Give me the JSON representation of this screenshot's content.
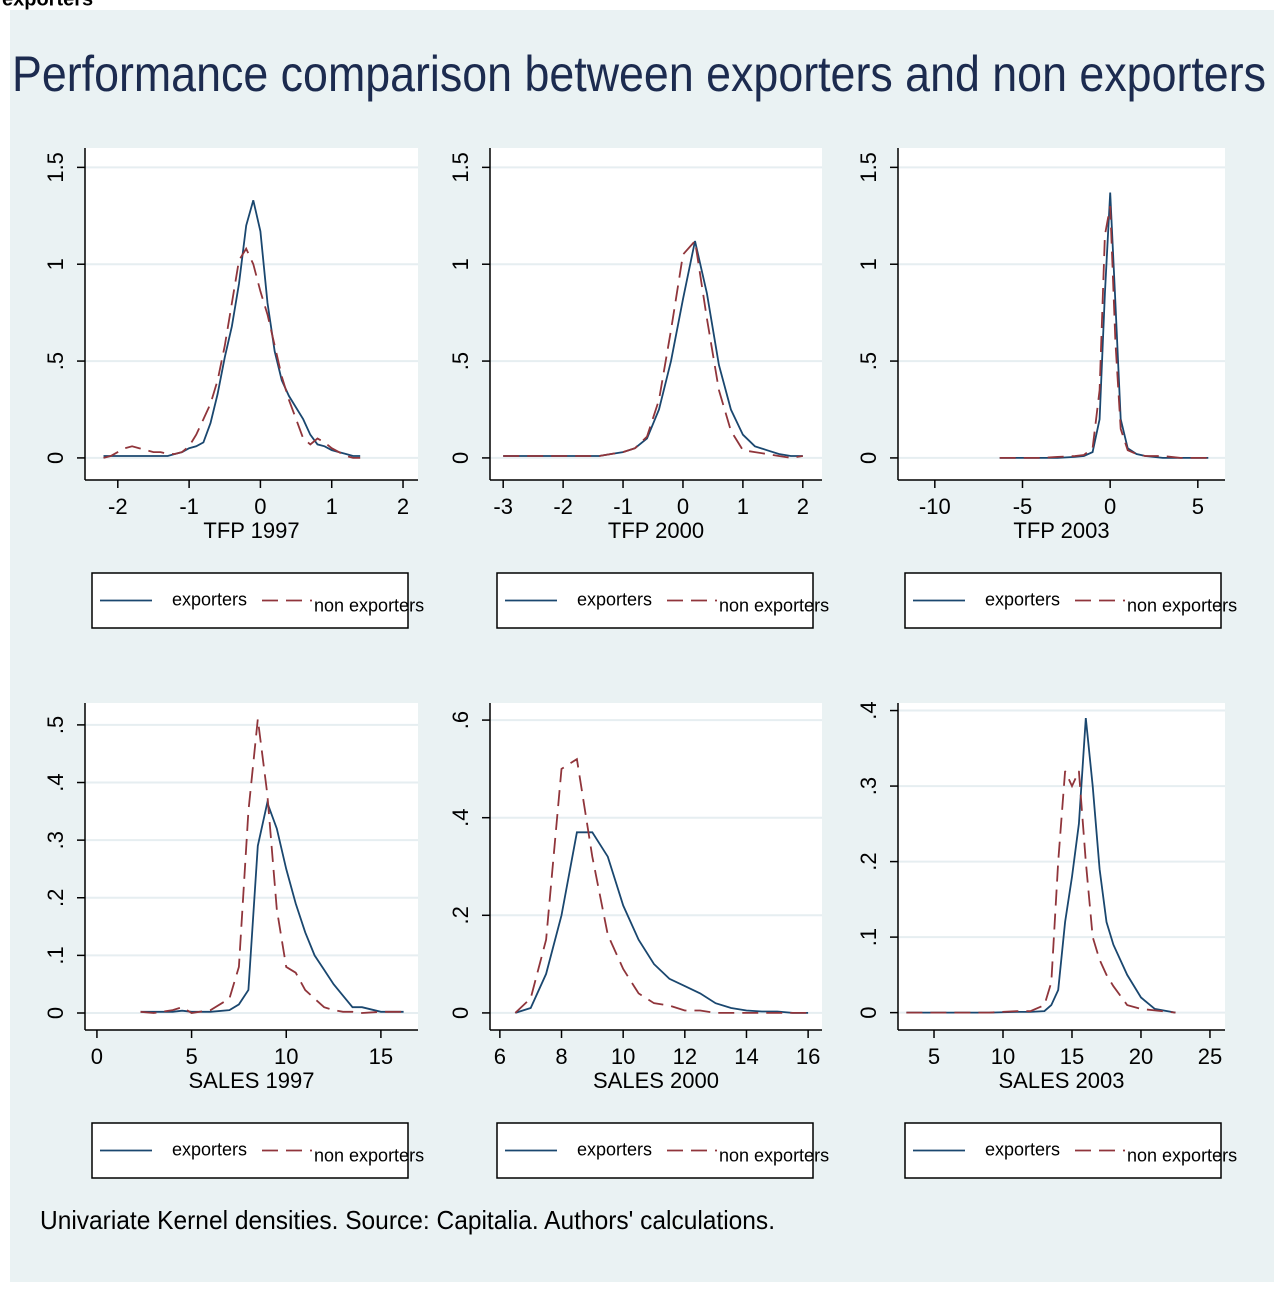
{
  "header": "exporters",
  "title": "Performance comparison between exporters and non exporters",
  "note": "Univariate Kernel densities. Source: Capitalia. Authors' calculations.",
  "chart_data": [
    {
      "type": "line",
      "x_label": "TFP 1997",
      "x": [
        -2.2,
        -2.1,
        -2.0,
        -1.9,
        -1.8,
        -1.7,
        -1.6,
        -1.5,
        -1.4,
        -1.3,
        -1.2,
        -1.1,
        -1.0,
        -0.9,
        -0.8,
        -0.7,
        -0.6,
        -0.5,
        -0.4,
        -0.3,
        -0.2,
        -0.1,
        0,
        0.1,
        0.2,
        0.3,
        0.4,
        0.5,
        0.6,
        0.7,
        0.8,
        0.9,
        1.0,
        1.1,
        1.2,
        1.3,
        1.4
      ],
      "xlim": [
        -2.46,
        2.21
      ],
      "xticks": [
        -2,
        -1,
        0,
        1,
        2
      ],
      "ylim": [
        -0.114,
        1.6
      ],
      "yticks": [
        0,
        {
          "value": 0.5,
          "label": ".5"
        },
        1,
        1.5
      ],
      "grid": true,
      "series": [
        {
          "name": "exporters",
          "color": "#1a476f",
          "dash": false,
          "values": [
            0.01,
            0.01,
            0.01,
            0.01,
            0.01,
            0.01,
            0.01,
            0.01,
            0.01,
            0.01,
            0.02,
            0.03,
            0.05,
            0.06,
            0.08,
            0.18,
            0.33,
            0.52,
            0.68,
            0.9,
            1.2,
            1.33,
            1.17,
            0.8,
            0.55,
            0.4,
            0.32,
            0.26,
            0.2,
            0.12,
            0.07,
            0.06,
            0.04,
            0.03,
            0.02,
            0.01,
            0.01
          ]
        },
        {
          "name": "non exporters",
          "color": "#90353b",
          "dash": true,
          "values": [
            0.0,
            0.01,
            0.03,
            0.05,
            0.06,
            0.05,
            0.04,
            0.03,
            0.03,
            0.02,
            0.02,
            0.03,
            0.06,
            0.12,
            0.2,
            0.28,
            0.4,
            0.58,
            0.8,
            1.02,
            1.08,
            1.0,
            0.86,
            0.74,
            0.58,
            0.42,
            0.3,
            0.2,
            0.1,
            0.07,
            0.1,
            0.08,
            0.05,
            0.03,
            0.01,
            0.0,
            0.0
          ]
        }
      ]
    },
    {
      "type": "line",
      "x_label": "TFP 2000",
      "x": [
        -3.0,
        -2.8,
        -2.6,
        -2.4,
        -2.2,
        -2.0,
        -1.8,
        -1.6,
        -1.4,
        -1.2,
        -1.0,
        -0.8,
        -0.6,
        -0.4,
        -0.2,
        0,
        0.2,
        0.4,
        0.6,
        0.8,
        1.0,
        1.2,
        1.4,
        1.6,
        1.8,
        2.0
      ],
      "xlim": [
        -3.22,
        2.32
      ],
      "xticks": [
        -3,
        -2,
        -1,
        0,
        1,
        2
      ],
      "ylim": [
        -0.114,
        1.6
      ],
      "yticks": [
        0,
        {
          "value": 0.5,
          "label": ".5"
        },
        1,
        1.5
      ],
      "grid": true,
      "series": [
        {
          "name": "exporters",
          "color": "#1a476f",
          "dash": false,
          "values": [
            0.01,
            0.01,
            0.01,
            0.01,
            0.01,
            0.01,
            0.01,
            0.01,
            0.01,
            0.02,
            0.03,
            0.05,
            0.1,
            0.25,
            0.5,
            0.82,
            1.12,
            0.85,
            0.48,
            0.25,
            0.12,
            0.06,
            0.04,
            0.02,
            0.01,
            0.01
          ]
        },
        {
          "name": "non exporters",
          "color": "#90353b",
          "dash": true,
          "values": [
            0.01,
            0.01,
            0.01,
            0.01,
            0.01,
            0.01,
            0.01,
            0.01,
            0.01,
            0.02,
            0.03,
            0.05,
            0.11,
            0.3,
            0.66,
            1.05,
            1.12,
            0.72,
            0.35,
            0.14,
            0.04,
            0.03,
            0.02,
            0.01,
            0.0,
            0.01
          ]
        }
      ]
    },
    {
      "type": "line",
      "x_label": "TFP 2003",
      "x": [
        -6.3,
        -5,
        -4,
        -3,
        -2,
        -1.5,
        -1,
        -0.6,
        -0.3,
        0,
        0.3,
        0.6,
        1,
        1.5,
        2,
        3,
        4,
        5,
        5.6
      ],
      "xlim": [
        -12.1,
        6.55
      ],
      "xticks": [
        -10,
        -5,
        0,
        5
      ],
      "ylim": [
        -0.114,
        1.6
      ],
      "yticks": [
        0,
        {
          "value": 0.5,
          "label": ".5"
        },
        1,
        1.5
      ],
      "grid": true,
      "series": [
        {
          "name": "exporters",
          "color": "#1a476f",
          "dash": false,
          "values": [
            0,
            0,
            0,
            0,
            0.005,
            0.01,
            0.03,
            0.2,
            0.85,
            1.37,
            0.8,
            0.2,
            0.05,
            0.02,
            0.01,
            0,
            0,
            0,
            0
          ]
        },
        {
          "name": "non exporters",
          "color": "#90353b",
          "dash": true,
          "values": [
            0,
            0,
            0,
            0.005,
            0.01,
            0.015,
            0.05,
            0.35,
            1.15,
            1.3,
            0.6,
            0.15,
            0.04,
            0.02,
            0.01,
            0.01,
            0,
            0,
            0
          ]
        }
      ]
    },
    {
      "type": "line",
      "x_label": "SALES 1997",
      "x": [
        2.3,
        3,
        4,
        4.5,
        5,
        6,
        7,
        7.5,
        8,
        8.5,
        9,
        9.5,
        10,
        10.5,
        11,
        11.5,
        12,
        12.5,
        13,
        13.5,
        14,
        15,
        16.2
      ],
      "xlim": [
        -0.63,
        16.96
      ],
      "xticks": [
        0,
        5,
        10,
        15
      ],
      "ylim": [
        -0.0295,
        0.538
      ],
      "yticks": [
        0,
        {
          "value": 0.1,
          "label": ".1"
        },
        {
          "value": 0.2,
          "label": ".2"
        },
        {
          "value": 0.3,
          "label": ".3"
        },
        {
          "value": 0.4,
          "label": ".4"
        },
        {
          "value": 0.5,
          "label": ".5"
        }
      ],
      "grid": true,
      "series": [
        {
          "name": "exporters",
          "color": "#1a476f",
          "dash": false,
          "values": [
            0.002,
            0.002,
            0.002,
            0.004,
            0.002,
            0.002,
            0.005,
            0.015,
            0.04,
            0.29,
            0.365,
            0.32,
            0.25,
            0.19,
            0.14,
            0.1,
            0.075,
            0.05,
            0.03,
            0.01,
            0.01,
            0.002,
            0.002
          ]
        },
        {
          "name": "non exporters",
          "color": "#90353b",
          "dash": true,
          "values": [
            0.002,
            0.0,
            0.005,
            0.01,
            0.0,
            0.005,
            0.025,
            0.08,
            0.35,
            0.51,
            0.38,
            0.18,
            0.08,
            0.07,
            0.04,
            0.025,
            0.01,
            0.005,
            0.002,
            0.002,
            0.0,
            0.002,
            0.002
          ]
        }
      ]
    },
    {
      "type": "line",
      "x_label": "SALES 2000",
      "x": [
        6.5,
        7,
        7.5,
        8,
        8.5,
        9,
        9.5,
        10,
        10.5,
        11,
        11.5,
        12,
        12.5,
        13,
        13.5,
        14,
        14.5,
        15,
        15.5,
        16
      ],
      "xlim": [
        5.68,
        16.45
      ],
      "xticks": [
        6,
        8,
        10,
        12,
        14,
        16
      ],
      "ylim": [
        -0.035,
        0.635
      ],
      "yticks": [
        0,
        {
          "value": 0.2,
          "label": ".2"
        },
        {
          "value": 0.4,
          "label": ".4"
        },
        {
          "value": 0.6,
          "label": ".6"
        }
      ],
      "grid": true,
      "series": [
        {
          "name": "exporters",
          "color": "#1a476f",
          "dash": false,
          "values": [
            0.0,
            0.01,
            0.08,
            0.2,
            0.37,
            0.37,
            0.32,
            0.22,
            0.15,
            0.1,
            0.07,
            0.055,
            0.04,
            0.02,
            0.01,
            0.005,
            0.003,
            0.003,
            0.0,
            0.0
          ]
        },
        {
          "name": "non exporters",
          "color": "#90353b",
          "dash": true,
          "values": [
            0.0,
            0.03,
            0.15,
            0.5,
            0.52,
            0.32,
            0.16,
            0.09,
            0.04,
            0.02,
            0.015,
            0.005,
            0.005,
            0.0,
            0.0,
            0.0,
            0.0,
            0.0,
            0.0,
            0.0
          ]
        }
      ]
    },
    {
      "type": "line",
      "x_label": "SALES 2003",
      "x": [
        3,
        5,
        7,
        9,
        11,
        12,
        13,
        13.5,
        14,
        14.5,
        15,
        15.5,
        16,
        16.5,
        17,
        17.5,
        18,
        19,
        20,
        21,
        22.5
      ],
      "xlim": [
        2.39,
        26.09
      ],
      "xticks": [
        5,
        10,
        15,
        20,
        25
      ],
      "ylim": [
        -0.023,
        0.41
      ],
      "yticks": [
        0,
        {
          "value": 0.1,
          "label": ".1"
        },
        {
          "value": 0.2,
          "label": ".2"
        },
        {
          "value": 0.3,
          "label": ".3"
        },
        {
          "value": 0.4,
          "label": ".4"
        }
      ],
      "grid": true,
      "series": [
        {
          "name": "exporters",
          "color": "#1a476f",
          "dash": false,
          "values": [
            0,
            0,
            0,
            0,
            0.001,
            0.001,
            0.002,
            0.01,
            0.03,
            0.12,
            0.18,
            0.25,
            0.39,
            0.3,
            0.19,
            0.12,
            0.09,
            0.05,
            0.02,
            0.005,
            0.0
          ]
        },
        {
          "name": "non exporters",
          "color": "#90353b",
          "dash": true,
          "values": [
            0,
            0,
            0,
            0,
            0.002,
            0.002,
            0.01,
            0.04,
            0.2,
            0.32,
            0.3,
            0.32,
            0.2,
            0.1,
            0.07,
            0.05,
            0.035,
            0.01,
            0.005,
            0.003,
            0.0
          ]
        }
      ]
    }
  ]
}
